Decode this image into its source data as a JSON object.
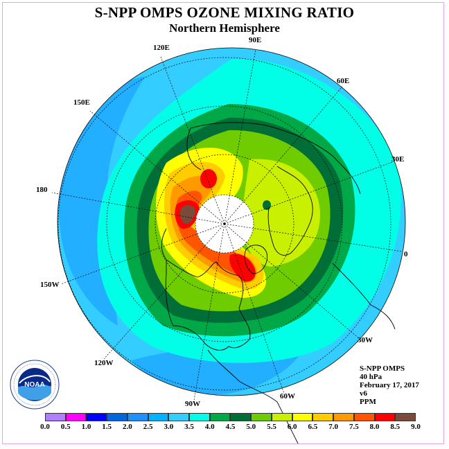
{
  "header": {
    "title": "S-NPP OMPS OZONE MIXING RATIO",
    "subtitle": "Northern Hemisphere"
  },
  "map": {
    "projection": "north-polar-stereographic",
    "longitude_labels": [
      "90E",
      "60E",
      "30E",
      "0",
      "30W",
      "60W",
      "90W",
      "120W",
      "150W",
      "180",
      "150E",
      "120E"
    ],
    "pole_area": "no data"
  },
  "info": {
    "instrument": "S-NPP OMPS",
    "pressure_level": "40 hPa",
    "date": "February 17, 2017",
    "version": "v6",
    "units": "PPM"
  },
  "logo": {
    "agency": "NOAA",
    "ring_text": "NATIONAL OCEANIC AND ATMOSPHERIC ADMINISTRATION - U.S. DEPARTMENT OF COMMERCE"
  },
  "colorbar": {
    "labels": [
      "0.0",
      "0.5",
      "1.0",
      "1.5",
      "2.0",
      "2.5",
      "3.0",
      "3.5",
      "4.0",
      "4.5",
      "5.0",
      "5.5",
      "6.0",
      "6.5",
      "7.0",
      "7.5",
      "8.0",
      "8.5",
      "9.0"
    ],
    "colors": [
      "#b07fff",
      "#d6a8f5",
      "#ff00ff",
      "#0000ff",
      "#0066dd",
      "#1e90ff",
      "#00b2ff",
      "#34cdff",
      "#00ffe6",
      "#00a847",
      "#006e36",
      "#6ecc00",
      "#c8f000",
      "#ffff00",
      "#ffcc00",
      "#ff9900",
      "#ff5500",
      "#ff0000",
      "#7a4a3a"
    ]
  },
  "chart_data": {
    "type": "heatmap",
    "title": "S-NPP OMPS OZONE MIXING RATIO",
    "subtitle": "Northern Hemisphere",
    "units": "PPM",
    "level": "40 hPa",
    "date": "February 17, 2017",
    "scale_range": [
      0.0,
      9.0
    ],
    "contour_levels": [
      0.0,
      0.5,
      1.0,
      1.5,
      2.0,
      2.5,
      3.0,
      3.5,
      4.0,
      4.5,
      5.0,
      5.5,
      6.0,
      6.5,
      7.0,
      7.5,
      8.0,
      8.5,
      9.0
    ],
    "regions": [
      {
        "area": "tropics / outer edge",
        "range": [
          3.0,
          3.5
        ]
      },
      {
        "area": "subtropics ring",
        "range": [
          3.5,
          4.0
        ]
      },
      {
        "area": "mid-latitude band",
        "range": [
          4.0,
          5.0
        ]
      },
      {
        "area": "high latitudes / Europe-Asia",
        "range": [
          5.5,
          6.5
        ]
      },
      {
        "area": "eastern Canada maximum",
        "range": [
          8.0,
          8.5
        ]
      },
      {
        "area": "Bering Sea / East Siberia maximum",
        "range": [
          8.0,
          9.0
        ]
      }
    ]
  }
}
